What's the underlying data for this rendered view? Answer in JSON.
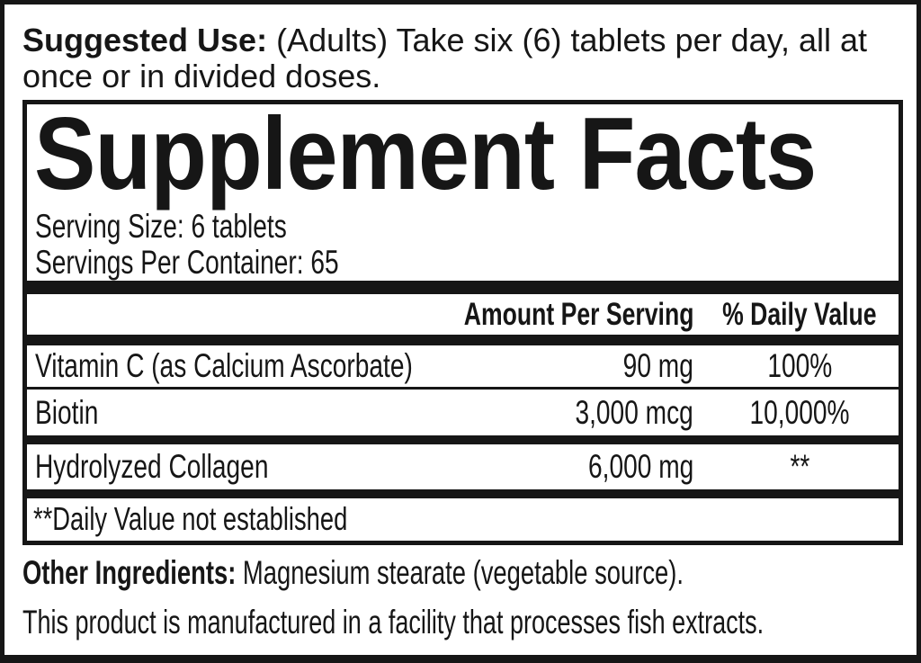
{
  "colors": {
    "ink": "#161616",
    "paper": "#ffffff"
  },
  "suggested_use": {
    "label": "Suggested Use:",
    "text": " (Adults) Take six (6) tablets per day, all at once or in divided doses."
  },
  "panel": {
    "title": "Supplement Facts",
    "serving_size": "Serving Size: 6 tablets",
    "servings_per_container": "Servings Per Container: 65",
    "columns": {
      "amount": "Amount Per Serving",
      "dv": "% Daily Value"
    },
    "rows": [
      {
        "name": "Vitamin C (as Calcium Ascorbate)",
        "amount": "90 mg",
        "dv": "100%"
      },
      {
        "name": "Biotin",
        "amount": "3,000 mcg",
        "dv": "10,000%"
      },
      {
        "name": "Hydrolyzed Collagen",
        "amount": "6,000 mg",
        "dv": "**"
      }
    ],
    "footnote": "**Daily Value not established"
  },
  "other_ingredients": {
    "label": "Other Ingredients:",
    "text": " Magnesium stearate (vegetable source)."
  },
  "facility_note": "This product is manufactured in a facility that processes fish extracts."
}
